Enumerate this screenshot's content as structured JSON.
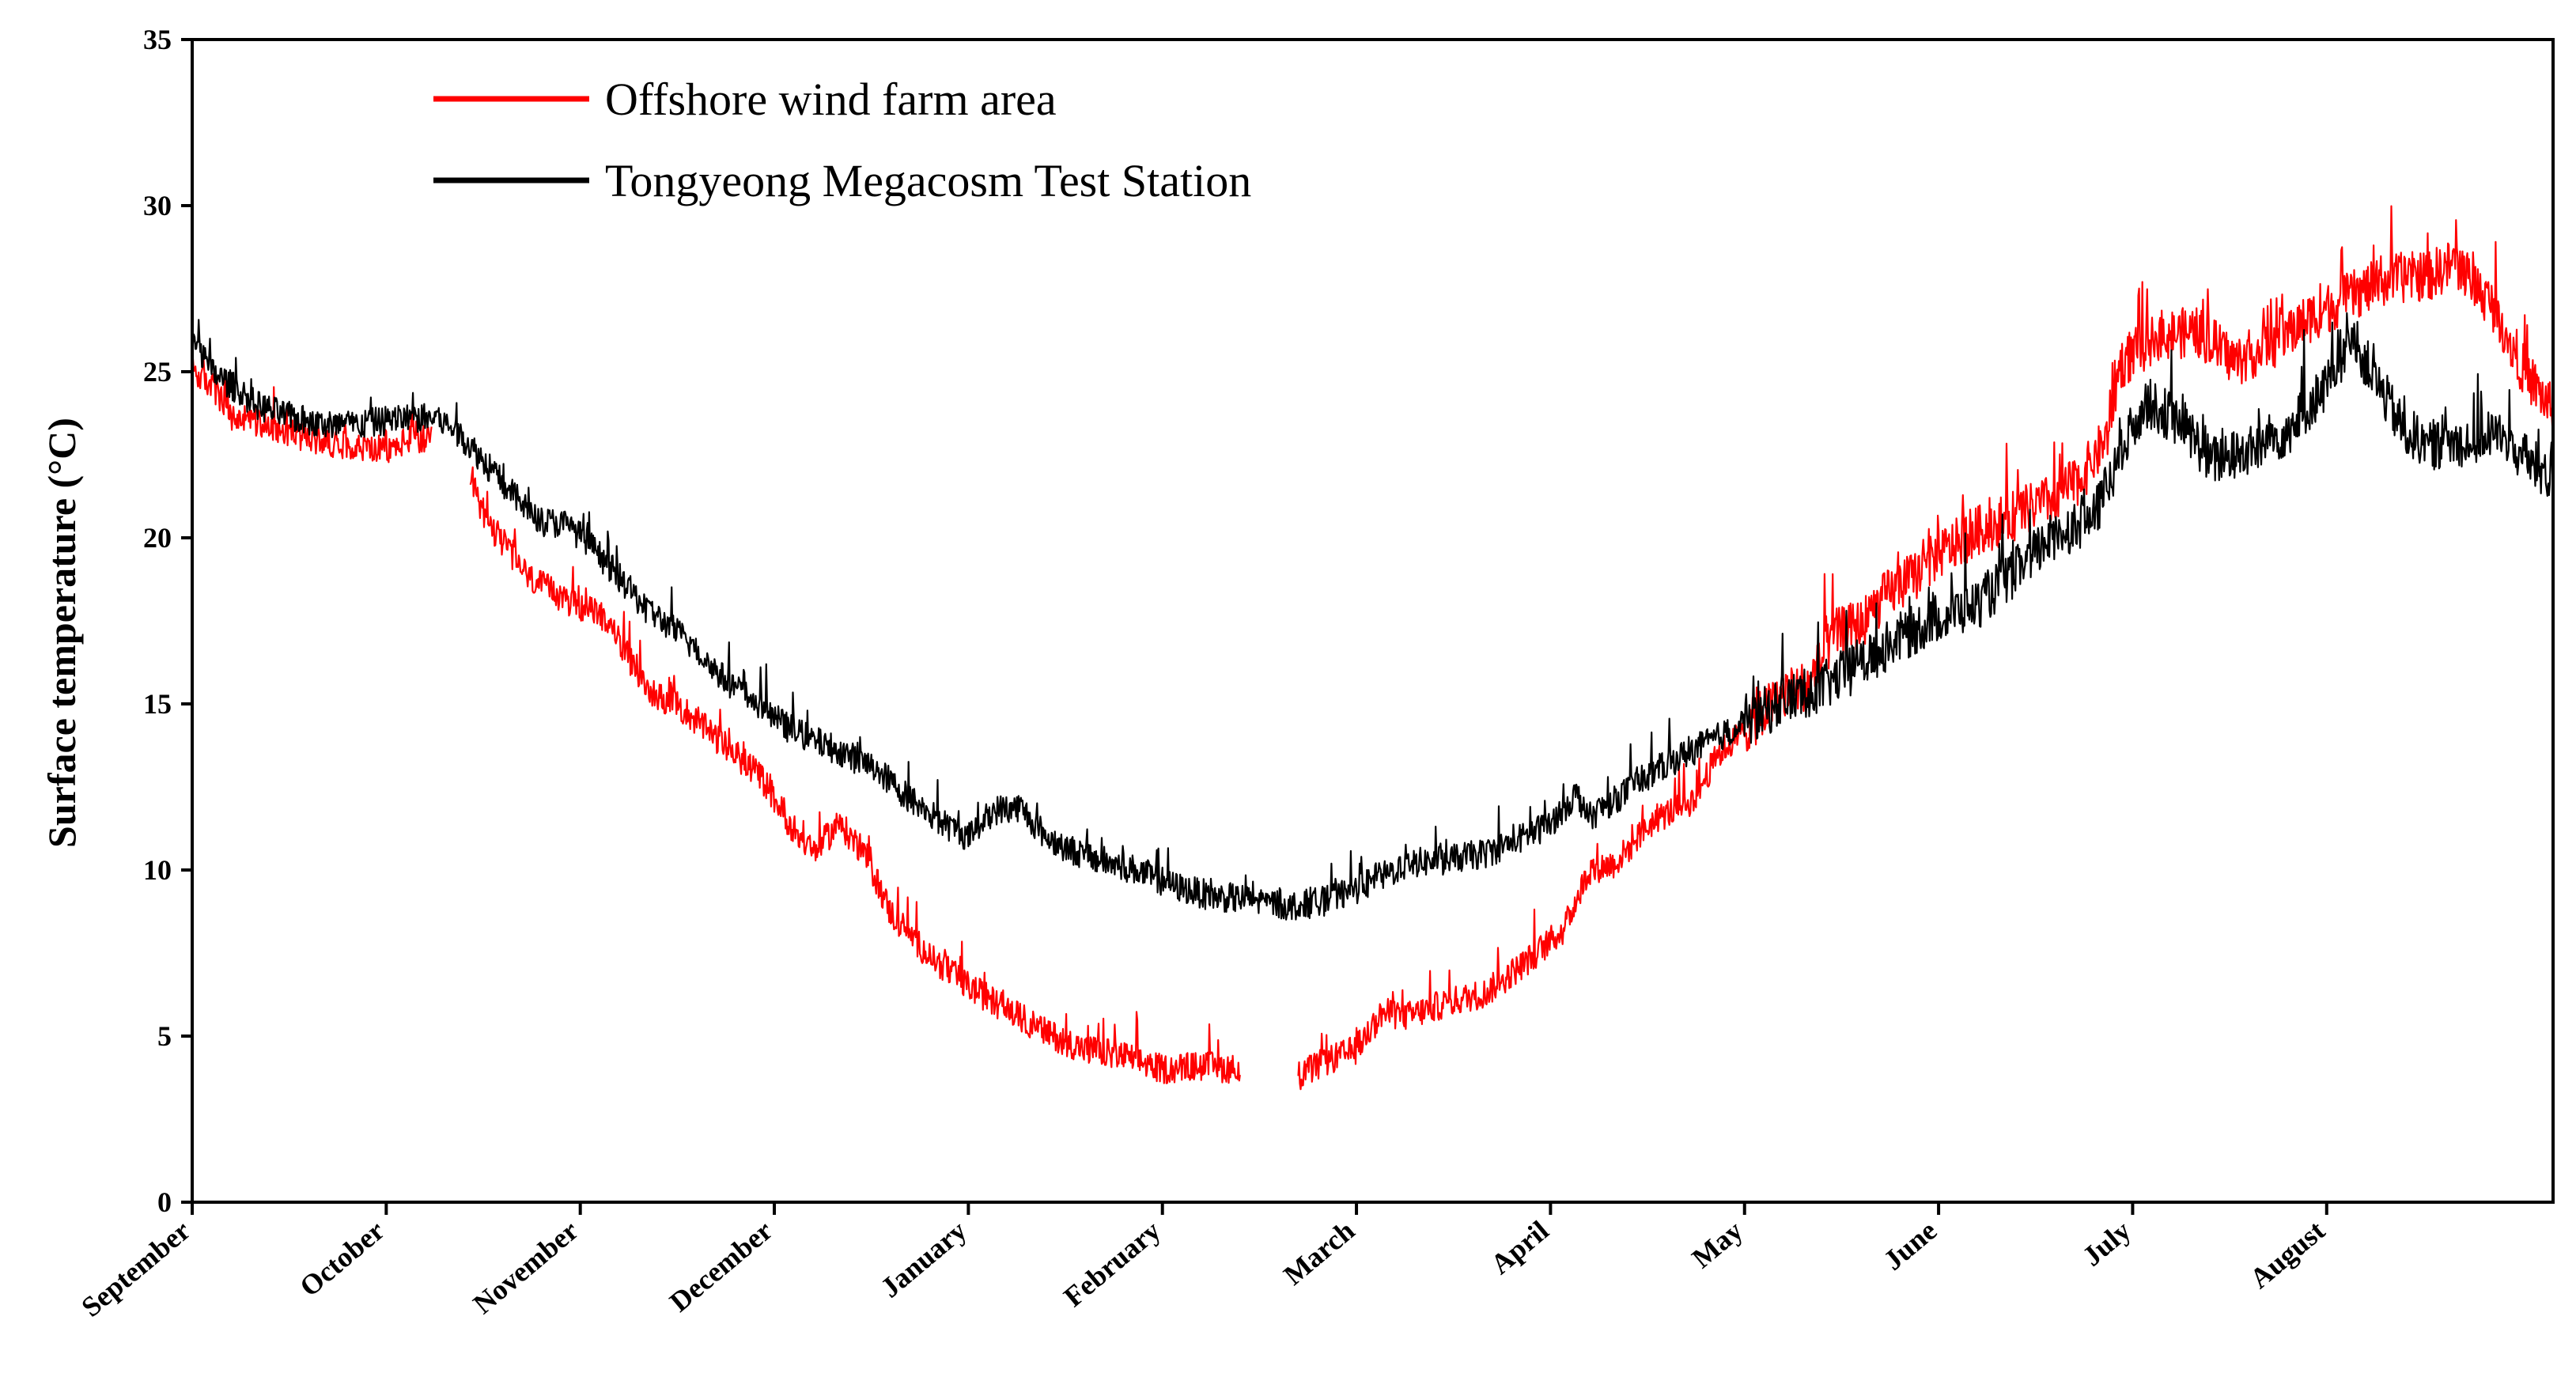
{
  "chart_data": {
    "type": "line",
    "title": "",
    "xlabel": "",
    "ylabel": "Surface temperature (°C)",
    "ylim": [
      0,
      35
    ],
    "yticks": [
      0,
      5,
      10,
      15,
      20,
      25,
      30,
      35
    ],
    "xlim": [
      0,
      365
    ],
    "grid": false,
    "legend_position": "top-left",
    "months": [
      {
        "label": "September",
        "day": 0
      },
      {
        "label": "October",
        "day": 30
      },
      {
        "label": "November",
        "day": 60
      },
      {
        "label": "December",
        "day": 90
      },
      {
        "label": "January",
        "day": 120
      },
      {
        "label": "February",
        "day": 150
      },
      {
        "label": "March",
        "day": 180
      },
      {
        "label": "April",
        "day": 210
      },
      {
        "label": "May",
        "day": 240
      },
      {
        "label": "June",
        "day": 270
      },
      {
        "label": "July",
        "day": 300
      },
      {
        "label": "August",
        "day": 330
      }
    ],
    "series": [
      {
        "name": "Offshore wind farm area",
        "color": "#ff0000",
        "noise": 0.45,
        "segments": [
          [
            [
              0,
              25.0
            ],
            [
              3,
              24.6
            ],
            [
              6,
              23.6
            ],
            [
              12,
              23.4
            ],
            [
              18,
              23.0
            ],
            [
              24,
              22.8
            ],
            [
              30,
              22.6
            ],
            [
              34,
              23.0
            ],
            [
              37,
              22.9
            ]
          ],
          [
            [
              43,
              21.6
            ],
            [
              46,
              20.4
            ],
            [
              52,
              18.8
            ],
            [
              58,
              18.1
            ],
            [
              64,
              17.6
            ],
            [
              66,
              16.9
            ],
            [
              70,
              15.5
            ],
            [
              76,
              14.8
            ],
            [
              82,
              13.8
            ],
            [
              88,
              12.8
            ],
            [
              92,
              11.5
            ],
            [
              96,
              10.5
            ],
            [
              100,
              11.4
            ],
            [
              104,
              10.5
            ],
            [
              108,
              8.7
            ],
            [
              114,
              7.4
            ],
            [
              120,
              6.5
            ],
            [
              126,
              5.8
            ],
            [
              132,
              5.1
            ],
            [
              138,
              4.6
            ],
            [
              144,
              4.4
            ],
            [
              150,
              4.0
            ],
            [
              156,
              4.1
            ],
            [
              162,
              4.0
            ]
          ],
          [
            [
              171,
              3.8
            ],
            [
              175,
              4.2
            ],
            [
              180,
              4.6
            ],
            [
              184,
              5.7
            ],
            [
              188,
              5.6
            ],
            [
              194,
              6.0
            ],
            [
              200,
              6.3
            ],
            [
              206,
              7.2
            ],
            [
              212,
              8.2
            ],
            [
              216,
              10.0
            ],
            [
              220,
              10.2
            ],
            [
              226,
              11.5
            ],
            [
              232,
              12.1
            ],
            [
              236,
              13.5
            ],
            [
              240,
              14.2
            ],
            [
              246,
              15.3
            ],
            [
              250,
              15.6
            ],
            [
              254,
              17.1
            ],
            [
              258,
              17.4
            ],
            [
              262,
              18.3
            ],
            [
              266,
              18.8
            ],
            [
              270,
              19.5
            ],
            [
              276,
              20.2
            ],
            [
              282,
              20.7
            ],
            [
              288,
              21.2
            ],
            [
              292,
              21.8
            ],
            [
              296,
              23.0
            ],
            [
              298,
              25.2
            ],
            [
              304,
              26.1
            ],
            [
              310,
              26.2
            ],
            [
              316,
              25.3
            ],
            [
              322,
              25.9
            ],
            [
              328,
              26.7
            ],
            [
              334,
              27.3
            ],
            [
              340,
              27.8
            ],
            [
              346,
              27.9
            ],
            [
              350,
              28.3
            ],
            [
              356,
              26.9
            ],
            [
              360,
              25.2
            ],
            [
              365,
              23.8
            ]
          ]
        ]
      },
      {
        "name": "Tongyeong Megacosm Test Station",
        "color": "#000000",
        "noise": 0.45,
        "segments": [
          [
            [
              0,
              26.0
            ],
            [
              3,
              25.0
            ],
            [
              6,
              24.6
            ],
            [
              10,
              24.0
            ],
            [
              14,
              23.7
            ],
            [
              20,
              23.4
            ],
            [
              26,
              23.4
            ],
            [
              32,
              23.6
            ],
            [
              38,
              23.6
            ],
            [
              42,
              23.0
            ],
            [
              46,
              22.1
            ],
            [
              50,
              21.2
            ],
            [
              54,
              20.5
            ],
            [
              58,
              20.4
            ],
            [
              62,
              19.7
            ],
            [
              66,
              18.8
            ],
            [
              70,
              17.9
            ],
            [
              76,
              17.0
            ],
            [
              82,
              15.8
            ],
            [
              88,
              14.9
            ],
            [
              92,
              14.3
            ],
            [
              96,
              13.9
            ],
            [
              100,
              13.6
            ],
            [
              106,
              13.0
            ],
            [
              110,
              12.3
            ],
            [
              116,
              11.4
            ],
            [
              120,
              11.0
            ],
            [
              124,
              11.8
            ],
            [
              128,
              11.9
            ],
            [
              132,
              11.0
            ],
            [
              136,
              10.6
            ],
            [
              140,
              10.3
            ],
            [
              146,
              10.0
            ],
            [
              152,
              9.5
            ],
            [
              158,
              9.2
            ],
            [
              164,
              9.1
            ],
            [
              170,
              8.9
            ],
            [
              176,
              9.1
            ],
            [
              182,
              9.6
            ],
            [
              188,
              10.2
            ],
            [
              194,
              10.3
            ],
            [
              200,
              10.5
            ],
            [
              206,
              11.0
            ],
            [
              210,
              11.4
            ],
            [
              214,
              12.3
            ],
            [
              216,
              11.6
            ],
            [
              222,
              12.4
            ],
            [
              228,
              13.2
            ],
            [
              234,
              13.8
            ],
            [
              240,
              14.4
            ],
            [
              246,
              15.1
            ],
            [
              252,
              15.5
            ],
            [
              258,
              16.2
            ],
            [
              264,
              17.0
            ],
            [
              270,
              17.6
            ],
            [
              276,
              18.0
            ],
            [
              282,
              19.0
            ],
            [
              288,
              20.1
            ],
            [
              294,
              20.6
            ],
            [
              298,
              22.4
            ],
            [
              302,
              24.1
            ],
            [
              308,
              23.4
            ],
            [
              312,
              22.3
            ],
            [
              318,
              22.6
            ],
            [
              324,
              23.2
            ],
            [
              330,
              24.6
            ],
            [
              334,
              26.0
            ],
            [
              338,
              24.6
            ],
            [
              342,
              23.2
            ],
            [
              346,
              22.8
            ],
            [
              352,
              22.9
            ],
            [
              356,
              23.2
            ],
            [
              360,
              22.5
            ],
            [
              365,
              21.7
            ]
          ]
        ]
      }
    ]
  }
}
